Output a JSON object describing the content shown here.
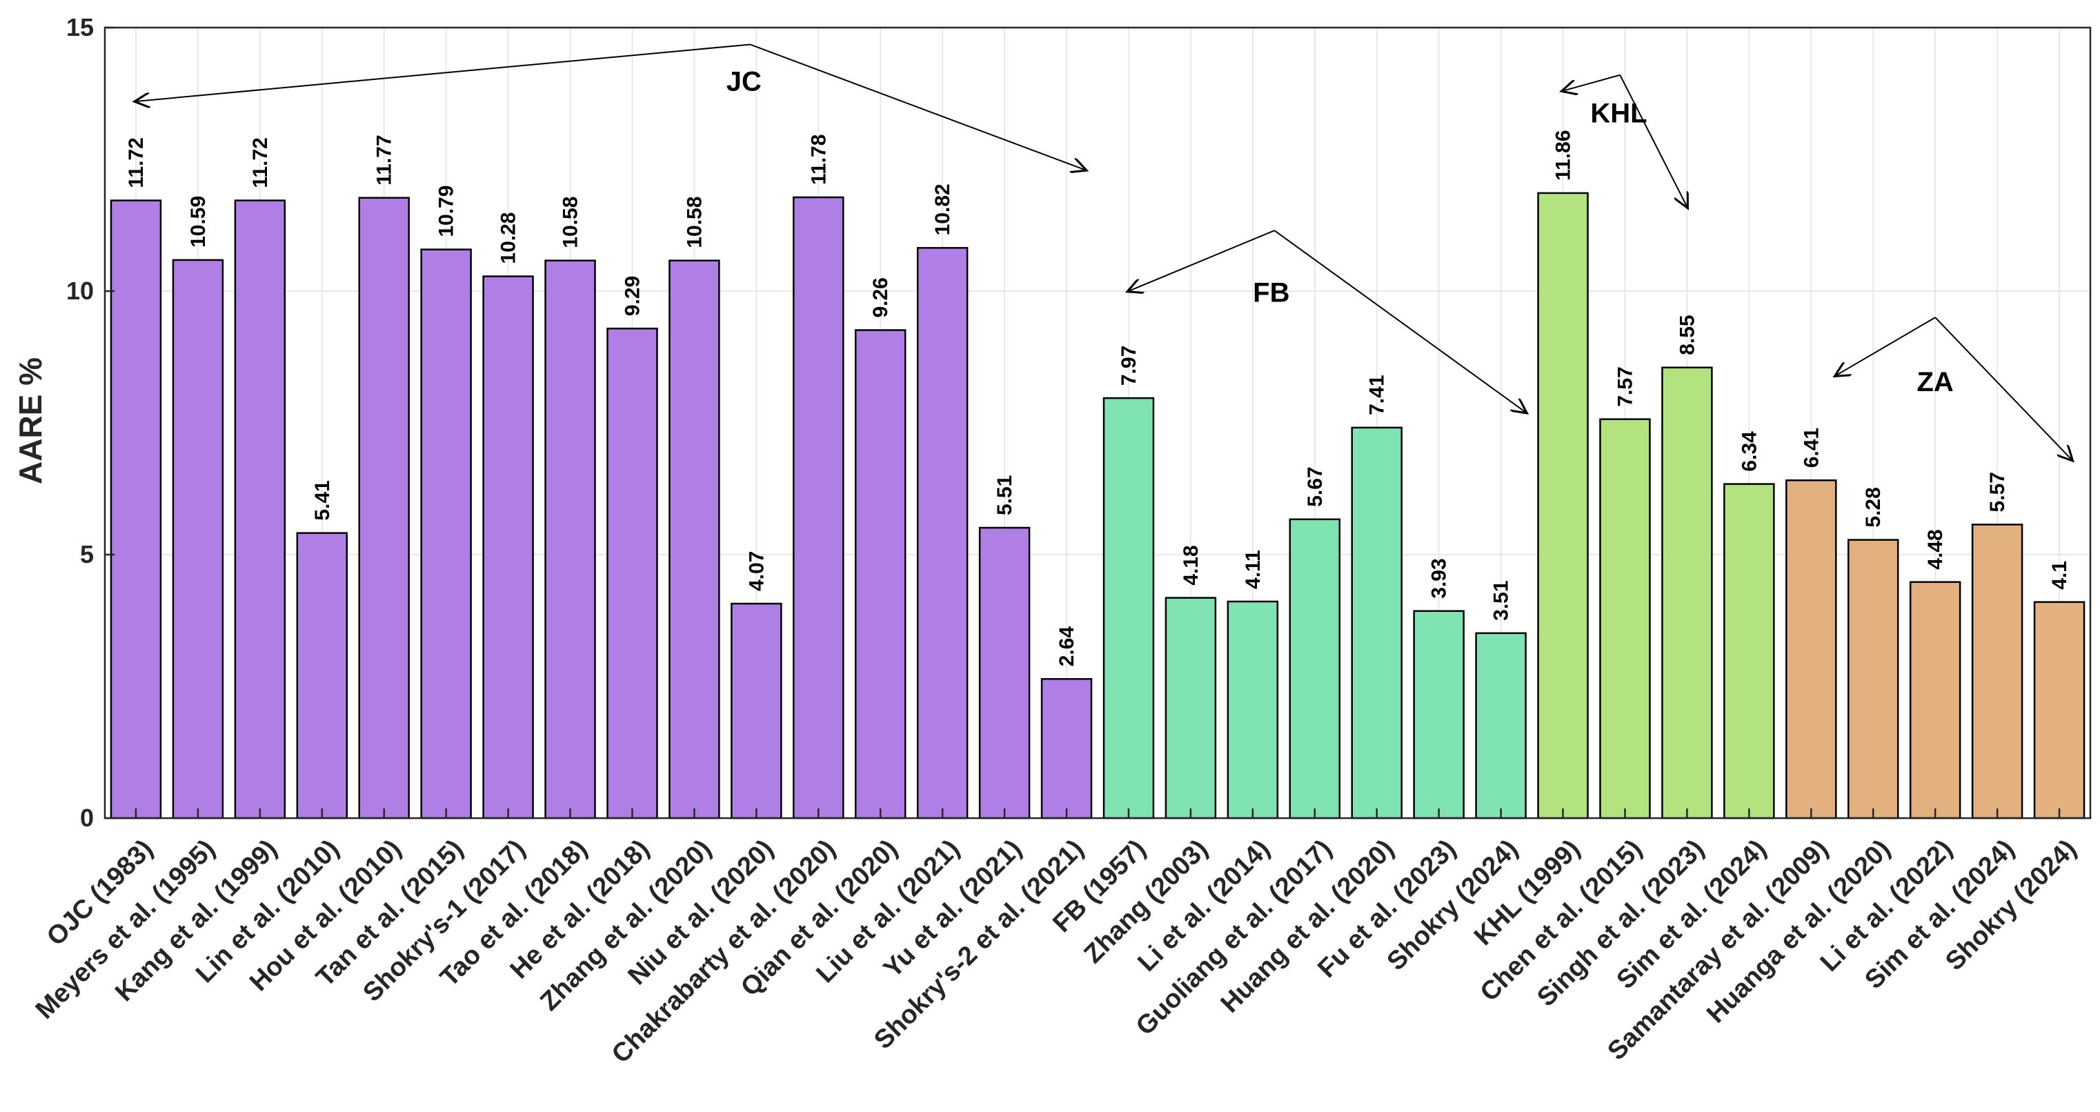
{
  "chart_data": {
    "type": "bar",
    "ylabel": "AARE %",
    "xlabel": "",
    "ylim": [
      0,
      15
    ],
    "yticks": [
      0,
      5,
      10,
      15
    ],
    "grid": true,
    "categories": [
      "OJC (1983)",
      "Meyers et al. (1995)",
      "Kang et al. (1999)",
      "Lin et al. (2010)",
      "Hou et al. (2010)",
      "Tan et al. (2015)",
      "Shokry's-1 (2017)",
      "Tao et al. (2018)",
      "He et al. (2018)",
      "Zhang et al. (2020)",
      "Niu et al. (2020)",
      "Chakrabarty et al. (2020)",
      "Qian et al. (2020)",
      "Liu et al. (2021)",
      "Yu et al. (2021)",
      "Shokry's-2 et al. (2021)",
      "FB (1957)",
      "Zhang (2003)",
      "Li et al. (2014)",
      "Guoliang et al. (2017)",
      "Huang et al. (2020)",
      "Fu et al. (2023)",
      "Shokry (2024)",
      "KHL (1999)",
      "Chen et al. (2015)",
      "Singh et al. (2023)",
      "Sim et al. (2024)",
      "Samantaray et al. (2009)",
      "Huanga et al. (2020)",
      "Li et al. (2022)",
      "Sim et al. (2024)",
      "Shokry (2024)"
    ],
    "values": [
      11.72,
      10.59,
      11.72,
      5.41,
      11.77,
      10.79,
      10.28,
      10.58,
      9.29,
      10.58,
      4.07,
      11.78,
      9.26,
      10.82,
      5.51,
      2.64,
      7.97,
      4.18,
      4.11,
      5.67,
      7.41,
      3.93,
      3.51,
      11.86,
      7.57,
      8.55,
      6.34,
      6.41,
      5.28,
      4.48,
      5.57,
      4.1
    ],
    "value_labels": [
      "11.72",
      "10.59",
      "11.72",
      "5.41",
      "11.77",
      "10.79",
      "10.28",
      "10.58",
      "9.29",
      "10.58",
      "4.07",
      "11.78",
      "9.26",
      "10.82",
      "5.51",
      "2.64",
      "7.97",
      "4.18",
      "4.11",
      "5.67",
      "7.41",
      "3.93",
      "3.51",
      "11.86",
      "7.57",
      "8.55",
      "6.34",
      "6.41",
      "5.28",
      "4.48",
      "5.57",
      "4.1"
    ],
    "groups": [
      {
        "name": "JC",
        "start": 0,
        "end": 15,
        "color": "#b07fe6"
      },
      {
        "name": "FB",
        "start": 16,
        "end": 22,
        "color": "#7fe3b2"
      },
      {
        "name": "KHL",
        "start": 23,
        "end": 26,
        "color": "#b3e37f"
      },
      {
        "name": "ZA",
        "start": 27,
        "end": 31,
        "color": "#e3b07f"
      }
    ]
  }
}
